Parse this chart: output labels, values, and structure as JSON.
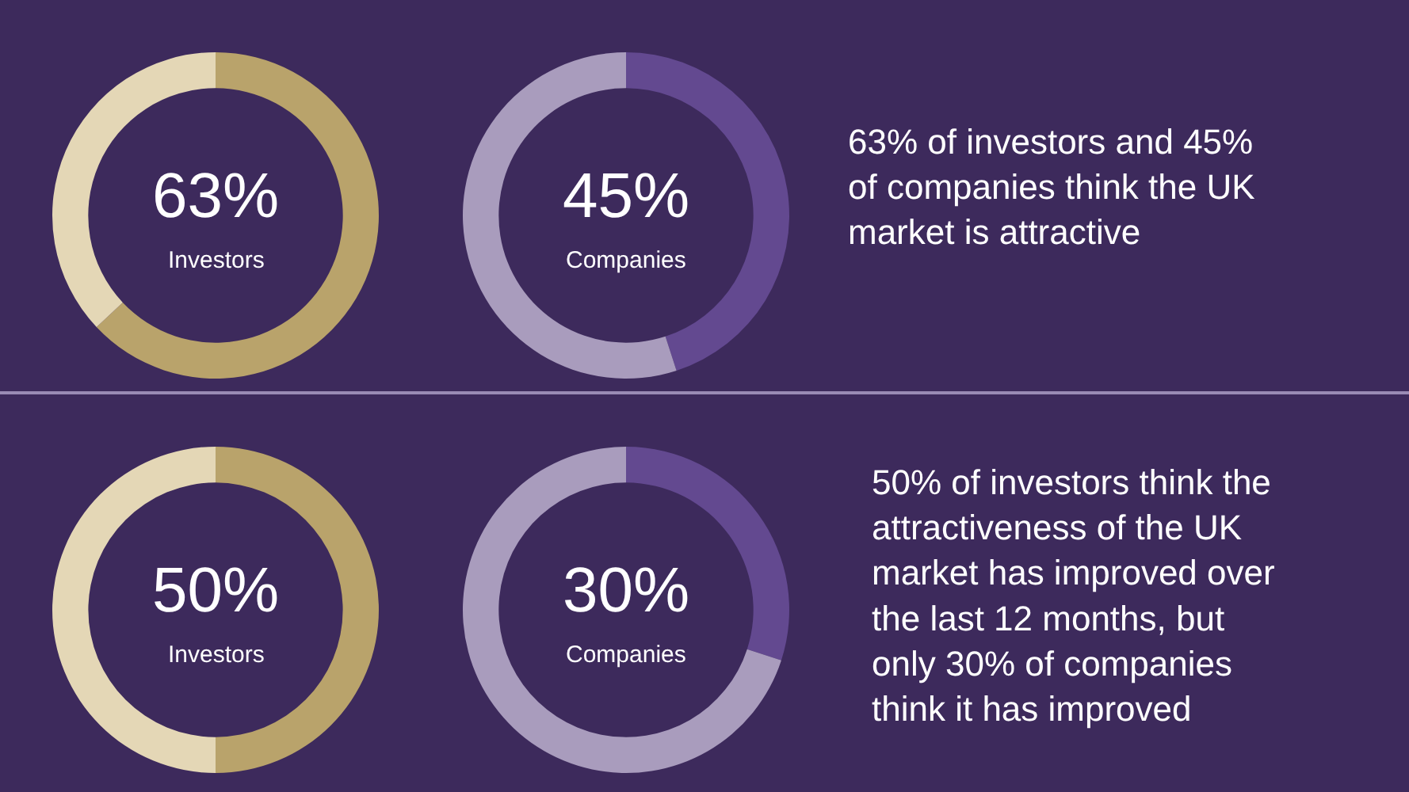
{
  "chart_data": [
    {
      "type": "donut",
      "categories": [
        null,
        null
      ],
      "values": [
        63,
        37
      ],
      "colors": [
        "#b9a36b",
        "#e4d7b6"
      ],
      "annotations": [
        "63%",
        "Investors"
      ]
    },
    {
      "type": "donut",
      "categories": [
        null,
        null
      ],
      "values": [
        45,
        55
      ],
      "colors": [
        "#634990",
        "#a99cbd"
      ],
      "annotations": [
        "45%",
        "Companies"
      ]
    },
    {
      "type": "other",
      "annotations": [
        "63% of investors and 45% of companies think the UK market is attractive"
      ]
    },
    {
      "type": "donut",
      "categories": [
        null,
        null
      ],
      "values": [
        50,
        50
      ],
      "colors": [
        "#b9a36b",
        "#e4d7b6"
      ],
      "annotations": [
        "50%",
        "Investors"
      ]
    },
    {
      "type": "donut",
      "categories": [
        null,
        null
      ],
      "values": [
        30,
        70
      ],
      "colors": [
        "#634990",
        "#a99cbd"
      ],
      "annotations": [
        "30%",
        "Companies"
      ]
    },
    {
      "type": "other",
      "annotations": [
        "50% of investors think the attractiveness of the UK market has improved over the last 12 months, but only 30% of companies think it has improved"
      ]
    }
  ]
}
